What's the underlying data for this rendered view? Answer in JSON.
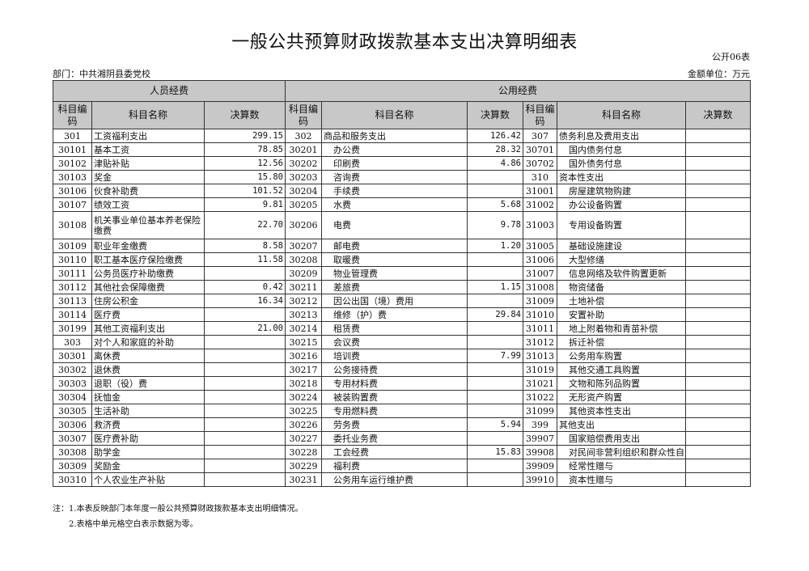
{
  "title": "一般公共预算财政拨款基本支出决算明细表",
  "form_no": "公开06表",
  "department": "部门：中共湘阴县委党校",
  "unit": "金额单位：万元",
  "groups": {
    "personnel": "人员经费",
    "public": "公用经费"
  },
  "columns": {
    "code": "科目编码",
    "name": "科目名称",
    "amount": "决算数"
  },
  "rows": [
    [
      "301",
      "工资福利支出",
      "299.15",
      "302",
      "商品和服务支出",
      "126.42",
      "307",
      "债务利息及费用支出",
      ""
    ],
    [
      "30101",
      "基本工资",
      "78.85",
      "30201",
      "办公费",
      "28.32",
      "30701",
      "国内债务付息",
      ""
    ],
    [
      "30102",
      "津贴补贴",
      "12.56",
      "30202",
      "印刷费",
      "4.86",
      "30702",
      "国外债务付息",
      ""
    ],
    [
      "30103",
      "奖金",
      "15.80",
      "30203",
      "咨询费",
      "",
      "310",
      "资本性支出",
      ""
    ],
    [
      "30106",
      "伙食补助费",
      "101.52",
      "30204",
      "手续费",
      "",
      "31001",
      "房屋建筑物购建",
      ""
    ],
    [
      "30107",
      "绩效工资",
      "9.81",
      "30205",
      "水费",
      "5.68",
      "31002",
      "办公设备购置",
      ""
    ],
    [
      "30108",
      "机关事业单位基本养老保险缴费",
      "22.70",
      "30206",
      "电费",
      "9.78",
      "31003",
      "专用设备购置",
      ""
    ],
    [
      "30109",
      "职业年金缴费",
      "8.58",
      "30207",
      "邮电费",
      "1.20",
      "31005",
      "基础设施建设",
      ""
    ],
    [
      "30110",
      "职工基本医疗保险缴费",
      "11.58",
      "30208",
      "取暖费",
      "",
      "31006",
      "大型修缮",
      ""
    ],
    [
      "30111",
      "公务员医疗补助缴费",
      "",
      "30209",
      "物业管理费",
      "",
      "31007",
      "信息网络及软件购置更新",
      ""
    ],
    [
      "30112",
      "其他社会保障缴费",
      "0.42",
      "30211",
      "差旅费",
      "1.15",
      "31008",
      "物资储备",
      ""
    ],
    [
      "30113",
      "住房公积金",
      "16.34",
      "30212",
      "因公出国（境）费用",
      "",
      "31009",
      "土地补偿",
      ""
    ],
    [
      "30114",
      "医疗费",
      "",
      "30213",
      "维修（护）费",
      "29.84",
      "31010",
      "安置补助",
      ""
    ],
    [
      "30199",
      "其他工资福利支出",
      "21.00",
      "30214",
      "租赁费",
      "",
      "31011",
      "地上附着物和青苗补偿",
      ""
    ],
    [
      "303",
      "对个人和家庭的补助",
      "",
      "30215",
      "会议费",
      "",
      "31012",
      "拆迁补偿",
      ""
    ],
    [
      "30301",
      "离休费",
      "",
      "30216",
      "培训费",
      "7.99",
      "31013",
      "公务用车购置",
      ""
    ],
    [
      "30302",
      "退休费",
      "",
      "30217",
      "公务接待费",
      "",
      "31019",
      "其他交通工具购置",
      ""
    ],
    [
      "30303",
      "退职（役）费",
      "",
      "30218",
      "专用材料费",
      "",
      "31021",
      "文物和陈列品购置",
      ""
    ],
    [
      "30304",
      "抚恤金",
      "",
      "30224",
      "被装购置费",
      "",
      "31022",
      "无形资产购置",
      ""
    ],
    [
      "30305",
      "生活补助",
      "",
      "30225",
      "专用燃料费",
      "",
      "31099",
      "其他资本性支出",
      ""
    ],
    [
      "30306",
      "救济费",
      "",
      "30226",
      "劳务费",
      "5.94",
      "399",
      "其他支出",
      ""
    ],
    [
      "30307",
      "医疗费补助",
      "",
      "30227",
      "委托业务费",
      "",
      "39907",
      "国家赔偿费用支出",
      ""
    ],
    [
      "30308",
      "助学金",
      "",
      "30228",
      "工会经费",
      "15.83",
      "39908",
      "对民间非营利组织和群众性自",
      ""
    ],
    [
      "30309",
      "奖励金",
      "",
      "30229",
      "福利费",
      "",
      "39909",
      "经常性赠与",
      ""
    ],
    [
      "30310",
      "个人农业生产补贴",
      "",
      "30231",
      "公务用车运行维护费",
      "",
      "39910",
      "资本性赠与",
      ""
    ]
  ],
  "notes": [
    "注：1.本表反映部门本年度一般公共预算财政拨款基本支出明细情况。",
    "2.表格中单元格空白表示数据为零。"
  ]
}
